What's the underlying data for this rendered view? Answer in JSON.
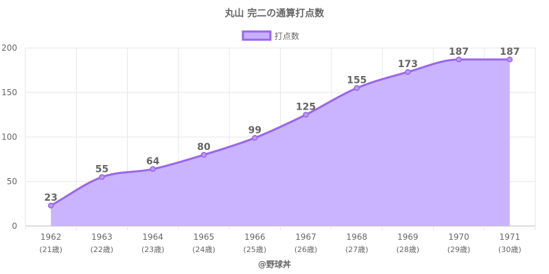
{
  "chart_data": {
    "type": "area",
    "title": "丸山 完二の通算打点数",
    "legend": {
      "label": "打点数",
      "position": "top"
    },
    "categories": [
      "1962",
      "1963",
      "1964",
      "1965",
      "1966",
      "1967",
      "1968",
      "1969",
      "1970",
      "1971"
    ],
    "sublabels": [
      "(21歳)",
      "(22歳)",
      "(23歳)",
      "(24歳)",
      "(25歳)",
      "(26歳)",
      "(27歳)",
      "(28歳)",
      "(29歳)",
      "(30歳)"
    ],
    "series": [
      {
        "name": "打点数",
        "values": [
          23,
          55,
          64,
          80,
          99,
          125,
          155,
          173,
          187,
          187
        ]
      }
    ],
    "ylim": [
      0,
      200
    ],
    "yticks": [
      0,
      50,
      100,
      150,
      200
    ],
    "grid": true,
    "colors": {
      "line": "#9966ee",
      "fill": "#c8b0ff",
      "grid": "#e6e6e6"
    }
  },
  "credit": "@野球丼"
}
